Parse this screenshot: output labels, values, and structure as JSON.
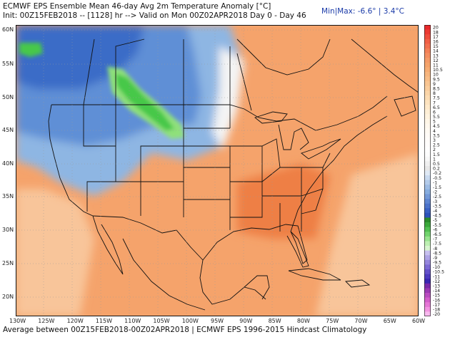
{
  "header": {
    "title": "ECMWF EPS Ensemble Mean 46-day Avg 2m Temperature Anomaly [°C]",
    "init": "Init: 00Z15FEB2018 -- [1128] hr --> Valid on Mon 00Z02APR2018  Day 0 - Day 46",
    "minmax": "Min|Max: -6.6° | 3.4°C"
  },
  "footer": "Average between 00Z15FEB2018-00Z02APR2018 | ECMWF EPS 1996-2015 Hindcast Climatology",
  "map": {
    "lon_labels": [
      "130W",
      "125W",
      "120W",
      "115W",
      "110W",
      "105W",
      "100W",
      "95W",
      "90W",
      "85W",
      "80W",
      "75W",
      "70W",
      "65W",
      "60W"
    ],
    "lat_labels": [
      "60N",
      "55N",
      "50N",
      "45N",
      "40N",
      "35N",
      "30N",
      "25N",
      "20N"
    ],
    "colors": {
      "warm_main": "#f5a36b",
      "warm_light": "#f8c59a",
      "warm_strong": "#ee7f45",
      "cool_light": "#8eb6e3",
      "cool_mid": "#5f8fd6",
      "cool_deep": "#3b6cc7",
      "green_light": "#8fe07a",
      "green_mid": "#46c84a",
      "neutral": "#f4f4f4"
    }
  },
  "colorbar": {
    "labels": [
      "20",
      "18",
      "17",
      "16",
      "15",
      "14",
      "13",
      "12",
      "11",
      "10.5",
      "10",
      "9.5",
      "9",
      "8.5",
      "8",
      "7.5",
      "7",
      "6.5",
      "6",
      "5.5",
      "5",
      "4.5",
      "4",
      "3.5",
      "3",
      "2.5",
      "2",
      "1.5",
      "1",
      "0.5",
      "0.2",
      "-0.2",
      "-0.5",
      "-1",
      "-1.5",
      "-2",
      "-2.5",
      "-3",
      "-3.5",
      "-4",
      "-4.5",
      "-5",
      "-5.5",
      "-6",
      "-6.5",
      "-7",
      "-7.5",
      "-8",
      "-8.5",
      "-9",
      "-9.5",
      "-10",
      "-10.5",
      "-11",
      "-12",
      "-13",
      "-14",
      "-15",
      "-16",
      "-17",
      "-18",
      "-20"
    ],
    "colors": [
      "#e8282a",
      "#ec3a33",
      "#ef4d3c",
      "#f15f45",
      "#f2704e",
      "#f38057",
      "#f48e60",
      "#f49a68",
      "#f5a36b",
      "#f6ac74",
      "#f7b57e",
      "#f8bd88",
      "#f9c592",
      "#facd9d",
      "#fbd5a8",
      "#fcdcb3",
      "#fde3bf",
      "#fee9ca",
      "#feefd6",
      "#fff3df",
      "#fff6e7",
      "#fff8ee",
      "#fffaf3",
      "#fffbf7",
      "#fffcfa",
      "#fffdfc",
      "#fffefe",
      "#fdfdfd",
      "#f8f8f8",
      "#f0f0f0",
      "#e8e8e8",
      "#dfe9f5",
      "#c9daf0",
      "#b3cbea",
      "#9dbce4",
      "#87addf",
      "#7399d8",
      "#5f86d1",
      "#4c73ca",
      "#3a61c3",
      "#2c52b9",
      "#2a8c2a",
      "#3aa83a",
      "#52c052",
      "#72d46e",
      "#98e48f",
      "#bdf0b2",
      "#d8f5d0",
      "#c7c0ef",
      "#aea4e6",
      "#9586dd",
      "#7c6ad4",
      "#6451ca",
      "#4d3abf",
      "#3a27b1",
      "#7a2aa8",
      "#9b3ab3",
      "#b94cbf",
      "#d35fcb",
      "#e677d6",
      "#f295e2",
      "#f8b8ee"
    ]
  }
}
